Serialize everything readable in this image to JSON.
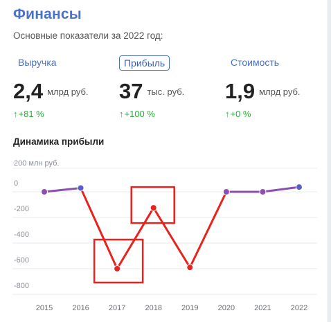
{
  "title": "Финансы",
  "subtitle": "Основные показатели за 2022 год:",
  "tabs": [
    {
      "label": "Выручка",
      "active": false
    },
    {
      "label": "Прибыль",
      "active": true
    },
    {
      "label": "Стоимость",
      "active": false
    }
  ],
  "metrics": [
    {
      "value": "2,4",
      "unit": "млрд руб.",
      "delta_arrow": "↑",
      "delta": "+81 %"
    },
    {
      "value": "37",
      "unit": "тыс. руб.",
      "delta_arrow": "↑",
      "delta": "+100 %"
    },
    {
      "value": "1,9",
      "unit": "млрд руб.",
      "delta_arrow": "↑",
      "delta": "+0 %"
    }
  ],
  "section_title": "Динамика прибыли",
  "colors": {
    "accent": "#4a72c8",
    "positive": "#2eaa3c",
    "line_positive": "#8a4fb0",
    "line_negative": "#e8221c",
    "point_positive": "#5a5fc8",
    "point_negative": "#e8221c",
    "highlight_box": "#e8221c"
  },
  "chart_data": {
    "type": "line",
    "x": [
      "2015",
      "2016",
      "2017",
      "2018",
      "2019",
      "2020",
      "2021",
      "2022"
    ],
    "values": [
      0,
      30,
      -600,
      -125,
      -590,
      0,
      0,
      37
    ],
    "unit_label": "200 млн руб.",
    "yticks": [
      "0",
      "-200",
      "-400",
      "-600",
      "-800"
    ],
    "ylim": [
      -800,
      200
    ],
    "grid": "horizontal",
    "highlighted_years": [
      "2017",
      "2018"
    ]
  }
}
